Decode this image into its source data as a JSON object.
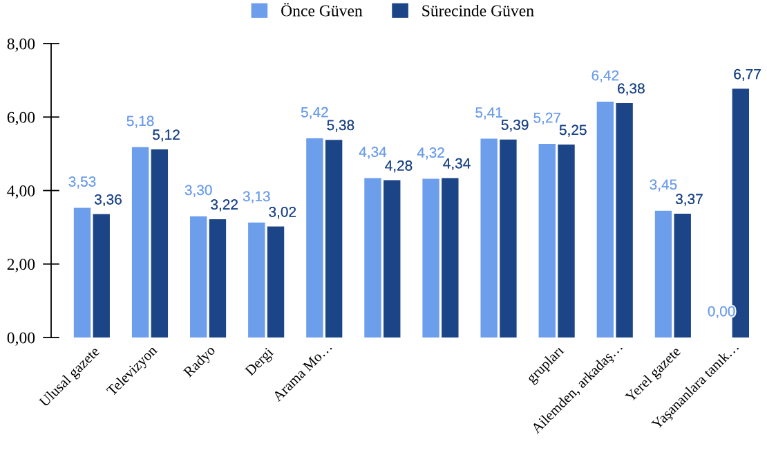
{
  "chart_data": {
    "type": "bar",
    "categories": [
      "Ulusal gazete",
      "Televizyon",
      "Radyo",
      "Dergi",
      "Arama Mo…",
      null,
      null,
      null,
      "grupları",
      "Ailemden, arkadaş…",
      "Yerel gazete",
      "Yaşananlara tanık…"
    ],
    "series": [
      {
        "name": "Önce Güven",
        "color": "#6d9eeb",
        "values": [
          3.53,
          5.18,
          3.3,
          3.13,
          5.42,
          4.34,
          4.32,
          5.41,
          5.27,
          6.42,
          3.45,
          0.0
        ],
        "value_labels": [
          "3,53",
          "5,18",
          "3,30",
          "3,13",
          "5,42",
          "4,34",
          "4,32",
          "5,41",
          "5,27",
          "6,42",
          "3,45",
          "0,00"
        ]
      },
      {
        "name": "Sürecinde Güven",
        "color": "#1c4587",
        "values": [
          3.36,
          5.12,
          3.22,
          3.02,
          5.38,
          4.28,
          4.34,
          5.39,
          5.25,
          6.38,
          3.37,
          6.77
        ],
        "value_labels": [
          "3,36",
          "5,12",
          "3,22",
          "3,02",
          "5,38",
          "4,28",
          "4,34",
          "5,39",
          "5,25",
          "6,38",
          "3,37",
          "6,77"
        ]
      }
    ],
    "ylim": [
      0,
      8
    ],
    "yticks": [
      {
        "value": 0,
        "label": "0,00"
      },
      {
        "value": 2,
        "label": "2,00"
      },
      {
        "value": 4,
        "label": "4,00"
      },
      {
        "value": 6,
        "label": "6,00"
      },
      {
        "value": 8,
        "label": "8,00"
      }
    ],
    "legend": "top"
  }
}
